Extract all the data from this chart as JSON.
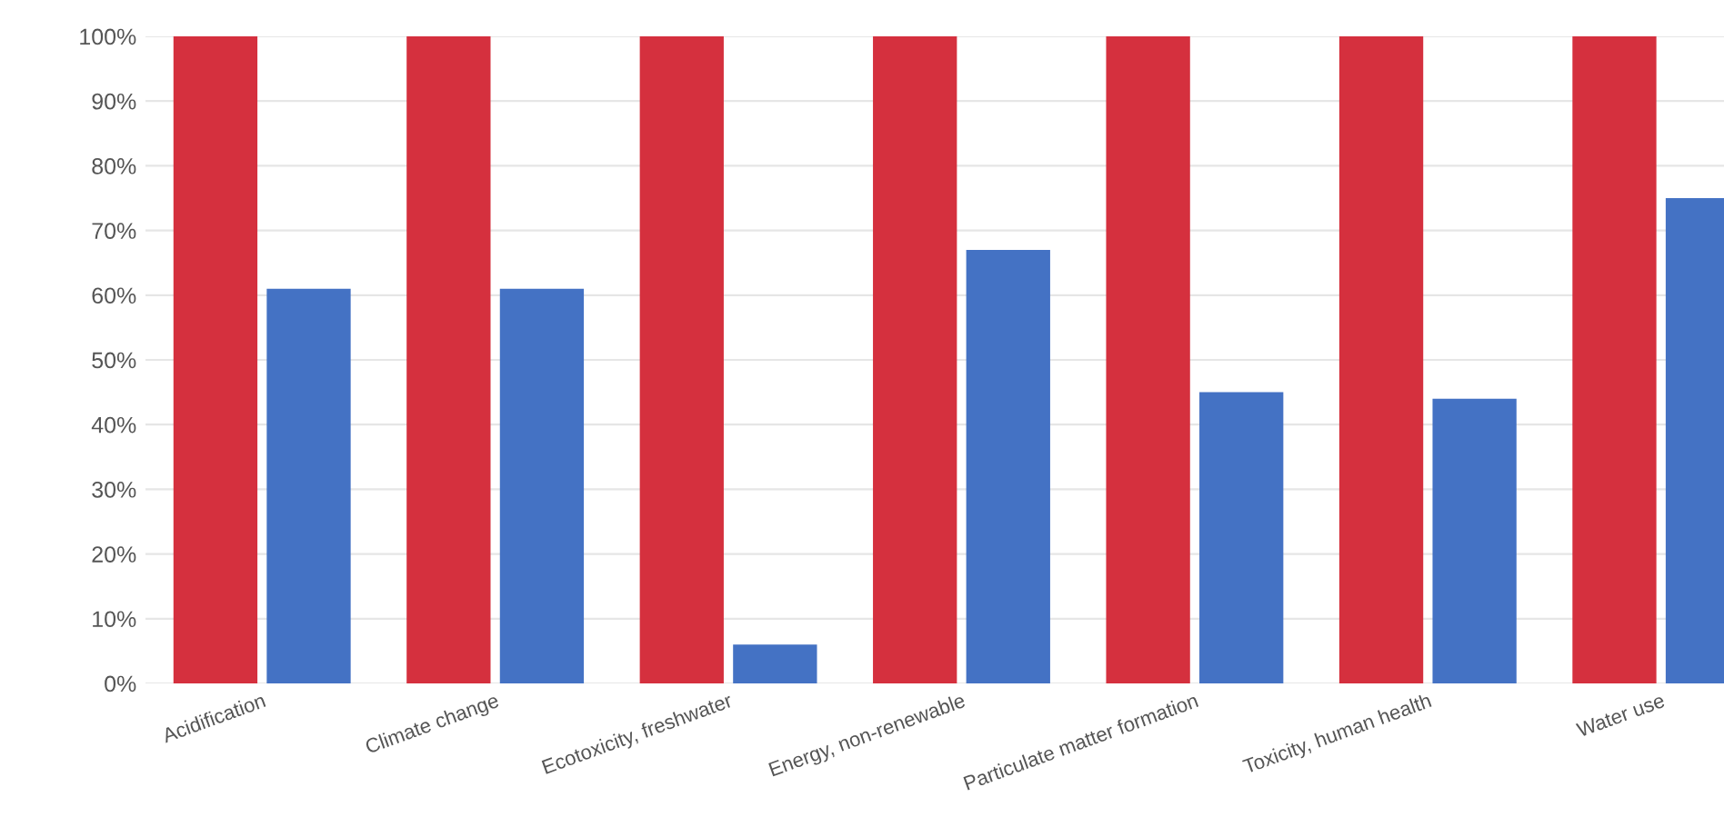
{
  "chart_data": {
    "type": "bar",
    "categories": [
      "Acidification",
      "Climate change",
      "Ecotoxicity, freshwater",
      "Energy, non-renewable",
      "Particulate matter formation",
      "Toxicity, human health",
      "Water use"
    ],
    "series": [
      {
        "color": "#d5303e",
        "values": [
          100,
          100,
          100,
          100,
          100,
          100,
          100
        ]
      },
      {
        "color": "#4472c4",
        "values": [
          61,
          61,
          6,
          67,
          45,
          44,
          75
        ]
      }
    ],
    "ylim": [
      0,
      100
    ],
    "yticks": [
      {
        "value": 0,
        "label": "0%"
      },
      {
        "value": 10,
        "label": "10%"
      },
      {
        "value": 20,
        "label": "20%"
      },
      {
        "value": 30,
        "label": "30%"
      },
      {
        "value": 40,
        "label": "40%"
      },
      {
        "value": 50,
        "label": "50%"
      },
      {
        "value": 60,
        "label": "60%"
      },
      {
        "value": 70,
        "label": "70%"
      },
      {
        "value": 80,
        "label": "80%"
      },
      {
        "value": 90,
        "label": "90%"
      },
      {
        "value": 100,
        "label": "100%"
      }
    ],
    "grid": "y"
  }
}
